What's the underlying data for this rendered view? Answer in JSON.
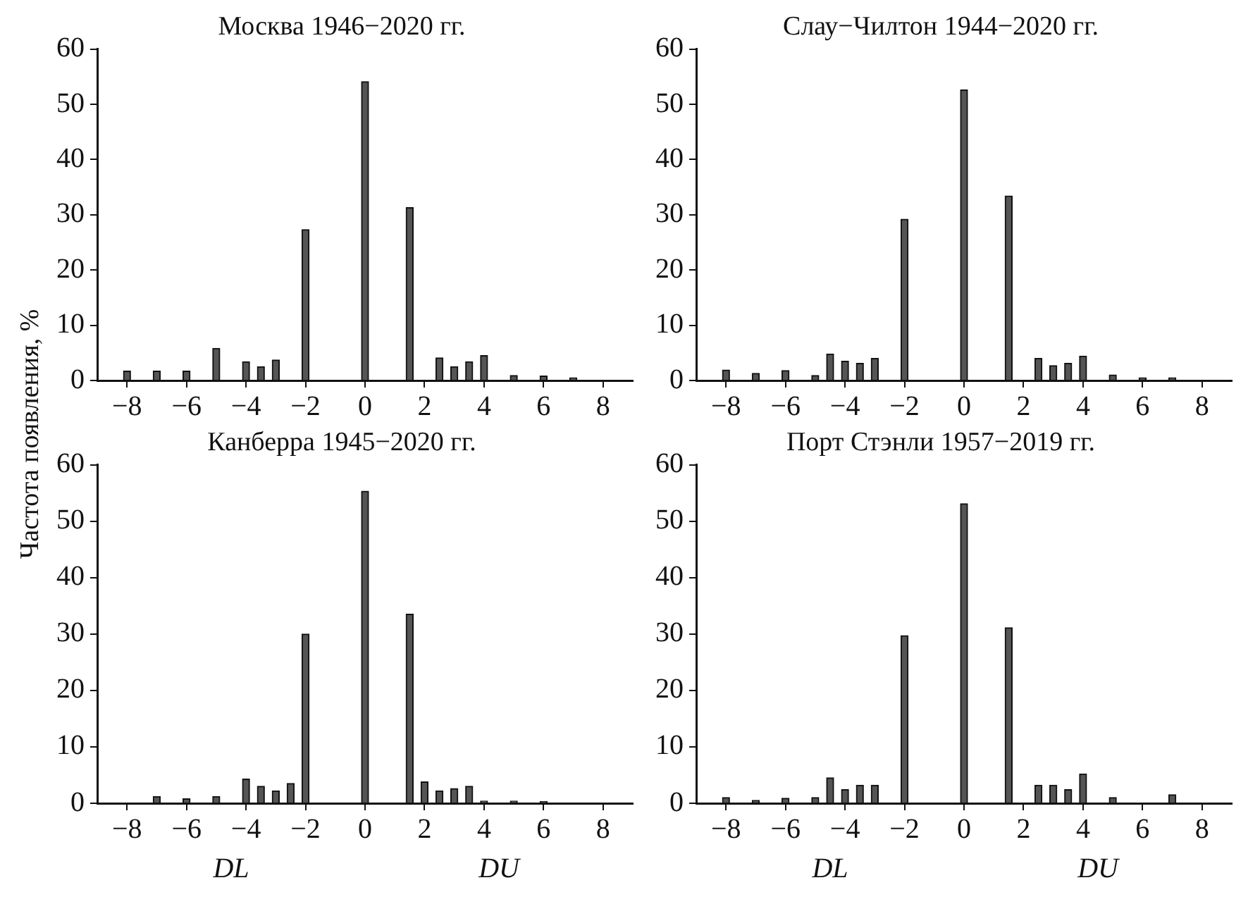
{
  "chart_data": [
    {
      "type": "bar",
      "title": "Москва 1946−2020 гг.",
      "ylabel": "Частота появления, %",
      "x": [
        -8,
        -7,
        -6,
        -5,
        -4,
        -3.5,
        -3,
        -2,
        0,
        1.5,
        2.5,
        3,
        3.5,
        4,
        5,
        6,
        7
      ],
      "values": [
        1.7,
        1.7,
        1.7,
        5.8,
        3.4,
        2.5,
        3.7,
        27.3,
        54.1,
        31.3,
        4.1,
        2.5,
        3.4,
        4.5,
        0.9,
        0.8,
        0.5
      ],
      "color": "#555555",
      "xlim": [
        -9,
        9
      ],
      "xticks": [
        {
          "value": -8,
          "label": "−8"
        },
        {
          "value": -6,
          "label": "−6"
        },
        {
          "value": -4,
          "label": "−4"
        },
        {
          "value": -2,
          "label": "−2"
        },
        0,
        2,
        4,
        6,
        8
      ],
      "ylim": [
        0,
        60
      ],
      "yticks": [
        0,
        10,
        20,
        30,
        40,
        50,
        60
      ],
      "grid": false
    },
    {
      "type": "bar",
      "title": "Слау−Чилтон 1944−2020 гг.",
      "x": [
        -8,
        -7,
        -6,
        -5,
        -4.5,
        -4,
        -3.5,
        -3,
        -2,
        0,
        1.5,
        2.5,
        3,
        3.5,
        4,
        5,
        6,
        7
      ],
      "values": [
        1.9,
        1.3,
        1.8,
        0.9,
        4.8,
        3.5,
        3.1,
        4.0,
        29.2,
        52.6,
        33.4,
        4.0,
        2.7,
        3.1,
        4.4,
        1.0,
        0.5,
        0.5
      ],
      "color": "#555555",
      "xlim": [
        -9,
        9
      ],
      "xticks": [
        {
          "value": -8,
          "label": "−8"
        },
        {
          "value": -6,
          "label": "−6"
        },
        {
          "value": -4,
          "label": "−4"
        },
        {
          "value": -2,
          "label": "−2"
        },
        0,
        2,
        4,
        6,
        8
      ],
      "ylim": [
        0,
        60
      ],
      "yticks": [
        0,
        10,
        20,
        30,
        40,
        50,
        60
      ],
      "grid": false
    },
    {
      "type": "bar",
      "title": "Канберра 1945−2020 гг.",
      "x": [
        -7,
        -6,
        -5,
        -4,
        -3.5,
        -3,
        -2.5,
        -2,
        0,
        1.5,
        2,
        2.5,
        3,
        3.5,
        4,
        5,
        6
      ],
      "values": [
        1.2,
        0.8,
        1.2,
        4.3,
        3.0,
        2.2,
        3.5,
        30.0,
        55.3,
        33.5,
        3.8,
        2.2,
        2.6,
        3.0,
        0.4,
        0.4,
        0.3
      ],
      "color": "#555555",
      "xlim": [
        -9,
        9
      ],
      "xticks": [
        {
          "value": -8,
          "label": "−8"
        },
        {
          "value": -6,
          "label": "−6"
        },
        {
          "value": -4,
          "label": "−4"
        },
        {
          "value": -2,
          "label": "−2"
        },
        0,
        2,
        4,
        6,
        8
      ],
      "ylim": [
        0,
        60
      ],
      "yticks": [
        0,
        10,
        20,
        30,
        40,
        50,
        60
      ],
      "grid": false,
      "annotations": [
        "DL",
        "DU"
      ]
    },
    {
      "type": "bar",
      "title": "Порт Стэнли 1957−2019 гг.",
      "x": [
        -8,
        -7,
        -6,
        -5,
        -4.5,
        -4,
        -3.5,
        -3,
        -2,
        0,
        1.5,
        2.5,
        3,
        3.5,
        4,
        5,
        7
      ],
      "values": [
        1.0,
        0.5,
        0.9,
        1.0,
        4.5,
        2.4,
        3.2,
        3.2,
        29.7,
        53.1,
        31.1,
        3.2,
        3.2,
        2.4,
        5.2,
        1.0,
        1.5
      ],
      "color": "#555555",
      "xlim": [
        -9,
        9
      ],
      "xticks": [
        {
          "value": -8,
          "label": "−8"
        },
        {
          "value": -6,
          "label": "−6"
        },
        {
          "value": -4,
          "label": "−4"
        },
        {
          "value": -2,
          "label": "−2"
        },
        0,
        2,
        4,
        6,
        8
      ],
      "ylim": [
        0,
        60
      ],
      "yticks": [
        0,
        10,
        20,
        30,
        40,
        50,
        60
      ],
      "grid": false,
      "annotations": [
        "DL",
        "DU"
      ]
    }
  ]
}
